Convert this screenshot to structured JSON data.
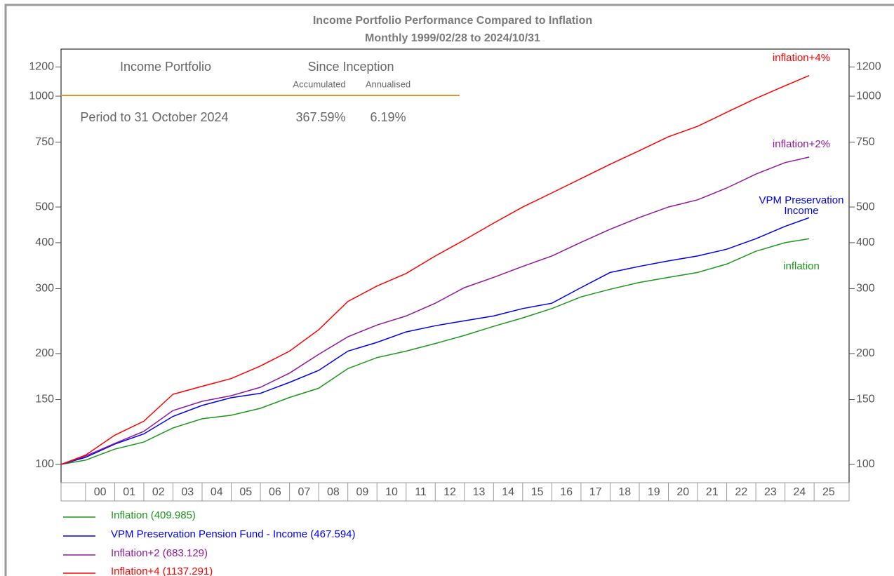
{
  "summary": {
    "fund": "Income Portfolio",
    "heading": "Since Inception",
    "columns": [
      "Accumulated",
      "Annualised"
    ],
    "period": "Period to 31 October 2024",
    "values": [
      "367.59%",
      "6.19%"
    ]
  },
  "chart_data": {
    "type": "line",
    "title": "Income Portfolio Performance Compared to Inflation",
    "subtitle": "Monthly 1999/02/28 to 2024/10/31",
    "log_scale": true,
    "xlim": [
      1999.16,
      2026.2
    ],
    "ylim": [
      89.2,
      1342
    ],
    "yticks": [
      100,
      150,
      200,
      300,
      400,
      500,
      750,
      1000,
      1200
    ],
    "xticks": [
      {
        "value": 2000.5,
        "label": "00"
      },
      {
        "value": 2001.5,
        "label": "01"
      },
      {
        "value": 2002.5,
        "label": "02"
      },
      {
        "value": 2003.5,
        "label": "03"
      },
      {
        "value": 2004.5,
        "label": "04"
      },
      {
        "value": 2005.5,
        "label": "05"
      },
      {
        "value": 2006.5,
        "label": "06"
      },
      {
        "value": 2007.5,
        "label": "07"
      },
      {
        "value": 2008.5,
        "label": "08"
      },
      {
        "value": 2009.5,
        "label": "09"
      },
      {
        "value": 2010.5,
        "label": "10"
      },
      {
        "value": 2011.5,
        "label": "11"
      },
      {
        "value": 2012.5,
        "label": "12"
      },
      {
        "value": 2013.5,
        "label": "13"
      },
      {
        "value": 2014.5,
        "label": "14"
      },
      {
        "value": 2015.5,
        "label": "15"
      },
      {
        "value": 2016.5,
        "label": "16"
      },
      {
        "value": 2017.5,
        "label": "17"
      },
      {
        "value": 2018.5,
        "label": "18"
      },
      {
        "value": 2019.5,
        "label": "19"
      },
      {
        "value": 2020.5,
        "label": "20"
      },
      {
        "value": 2021.5,
        "label": "21"
      },
      {
        "value": 2022.5,
        "label": "22"
      },
      {
        "value": 2023.5,
        "label": "23"
      },
      {
        "value": 2024.5,
        "label": "24"
      },
      {
        "value": 2025.5,
        "label": "25"
      }
    ],
    "x": [
      1999.16,
      2000,
      2001,
      2002,
      2003,
      2004,
      2005,
      2006,
      2007,
      2008,
      2009,
      2010,
      2011,
      2012,
      2013,
      2014,
      2015,
      2016,
      2017,
      2018,
      2019,
      2020,
      2021,
      2022,
      2023,
      2024,
      2024.83
    ],
    "series": [
      {
        "name": "Inflation (409.985)",
        "annotation": "inflation",
        "color": "#1e961e",
        "values": [
          100,
          102.7,
          110,
          115,
          125.6,
          133,
          136,
          142,
          152,
          161,
          182,
          195,
          203,
          213,
          224,
          237,
          250,
          265,
          285,
          299,
          312,
          322,
          332,
          350,
          379,
          400,
          409.985
        ]
      },
      {
        "name": "VPM Preservation Pension Fund - Income (467.594)",
        "annotation": [
          "VPM Preservation",
          "Income"
        ],
        "color": "#0000ee",
        "values": [
          100,
          104.5,
          113.5,
          121,
          135,
          144.6,
          151.7,
          156,
          167,
          180,
          203,
          214.5,
          229,
          238,
          245.5,
          253,
          265,
          274,
          302,
          332,
          345,
          357,
          368,
          384,
          410,
          443,
          467.594
        ]
      },
      {
        "name": "Inflation+2 (683.129)",
        "annotation": "inflation+2%",
        "color": "#8e1a9a",
        "values": [
          100,
          105.4,
          114,
          123,
          140,
          148.4,
          153.7,
          162,
          177,
          199,
          222,
          239,
          253,
          274,
          302,
          322,
          345,
          368,
          401,
          435,
          468,
          500,
          523,
          563,
          614,
          660,
          683.129
        ]
      },
      {
        "name": "Inflation+4 (1137.291)",
        "annotation": "inflation+4%",
        "color": "#ff0000",
        "values": [
          100,
          106,
          120,
          131,
          155,
          163,
          171,
          185,
          203,
          232,
          277,
          305,
          330,
          368,
          407,
          452,
          500,
          546,
          597,
          653,
          711,
          776,
          828,
          904,
          986,
          1067,
          1137.291
        ]
      }
    ]
  }
}
